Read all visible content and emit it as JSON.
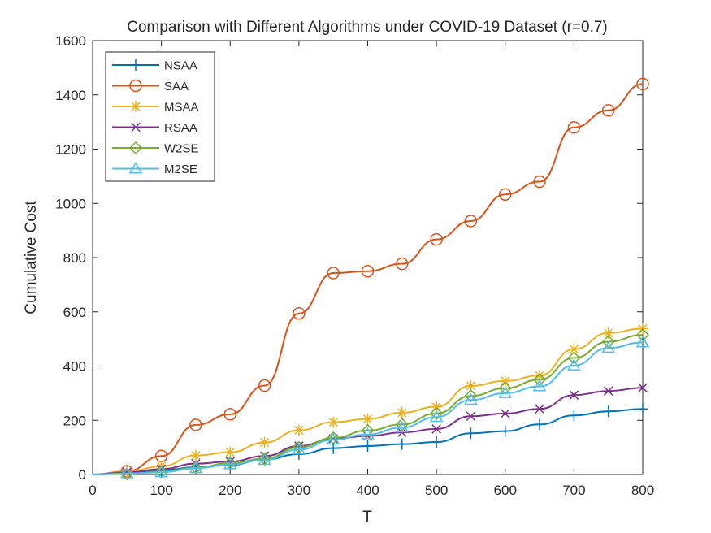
{
  "chart_data": {
    "type": "line",
    "title": "Comparison with Different Algorithms under COVID-19 Dataset (r=0.7)",
    "xlabel": "T",
    "ylabel": "Cumulative Cost",
    "xlim": [
      0,
      800
    ],
    "ylim": [
      0,
      1600
    ],
    "xticks": [
      0,
      100,
      200,
      300,
      400,
      500,
      600,
      700,
      800
    ],
    "yticks": [
      0,
      200,
      400,
      600,
      800,
      1000,
      1200,
      1400,
      1600
    ],
    "legend_location": "top-left",
    "x": [
      0,
      50,
      100,
      150,
      200,
      250,
      300,
      350,
      400,
      450,
      500,
      550,
      600,
      650,
      700,
      750,
      800
    ],
    "series": [
      {
        "name": "NSAA",
        "color": "#0072BD",
        "marker": "plus",
        "values": [
          0,
          8,
          15,
          27,
          35,
          55,
          75,
          97,
          105,
          112,
          120,
          152,
          160,
          185,
          218,
          233,
          242
        ]
      },
      {
        "name": "SAA",
        "color": "#D95319",
        "marker": "circle",
        "values": [
          0,
          12,
          68,
          183,
          222,
          328,
          594,
          743,
          750,
          777,
          867,
          935,
          1033,
          1080,
          1280,
          1343,
          1440
        ]
      },
      {
        "name": "MSAA",
        "color": "#EDB120",
        "marker": "asterisk",
        "values": [
          0,
          10,
          30,
          70,
          82,
          118,
          163,
          193,
          205,
          228,
          250,
          327,
          345,
          365,
          462,
          522,
          538
        ]
      },
      {
        "name": "RSAA",
        "color": "#7E2F8E",
        "marker": "x",
        "values": [
          0,
          8,
          20,
          40,
          48,
          68,
          105,
          132,
          142,
          155,
          168,
          215,
          225,
          242,
          293,
          308,
          320
        ]
      },
      {
        "name": "W2SE",
        "color": "#77AC30",
        "marker": "diamond",
        "values": [
          0,
          2,
          10,
          25,
          42,
          58,
          100,
          135,
          162,
          185,
          225,
          290,
          318,
          350,
          430,
          490,
          515
        ]
      },
      {
        "name": "M2SE",
        "color": "#4DBEEE",
        "marker": "triangle",
        "values": [
          0,
          4,
          8,
          23,
          37,
          53,
          92,
          128,
          148,
          173,
          212,
          275,
          300,
          325,
          402,
          467,
          487
        ]
      }
    ]
  }
}
